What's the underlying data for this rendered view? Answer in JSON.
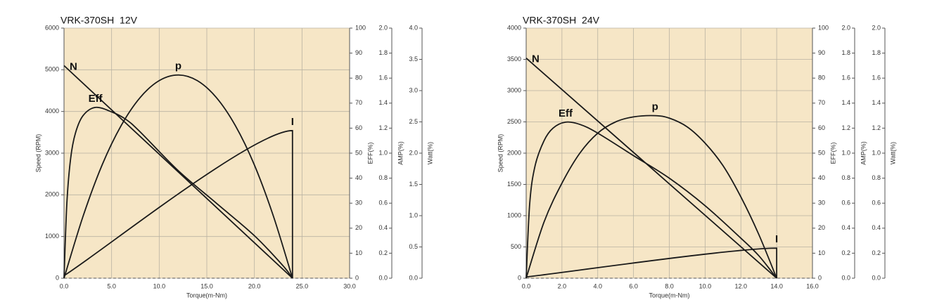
{
  "chart_data": [
    {
      "type": "line",
      "title": "VRK-370SH  12V",
      "xlabel": "Torque(m-Nm)",
      "xlim": [
        0,
        30
      ],
      "xticks": [
        {
          "value": 0,
          "label": "0.0"
        },
        {
          "value": 5,
          "label": "5.0"
        },
        {
          "value": 10,
          "label": "10.0"
        },
        {
          "value": 15,
          "label": "15.0"
        },
        {
          "value": 20,
          "label": "20.0"
        },
        {
          "value": 25,
          "label": "25.0"
        },
        {
          "value": 30,
          "label": "30.0"
        }
      ],
      "ylabel": "Speed (RPM)",
      "ylim": [
        0,
        6000
      ],
      "yticks": [
        0,
        1000,
        2000,
        3000,
        4000,
        5000,
        6000
      ],
      "y2label": "EFF(%)",
      "y2lim": [
        0,
        100
      ],
      "y2ticks": [
        0,
        10,
        20,
        30,
        40,
        50,
        60,
        70,
        80,
        90,
        100
      ],
      "y3label": "AMP(%)",
      "y3lim": [
        0,
        2
      ],
      "y3ticks": [
        {
          "value": 0,
          "label": "0.0"
        },
        0.2,
        0.4,
        0.6,
        0.8,
        {
          "value": 1,
          "label": "1.0"
        },
        1.2,
        1.4,
        1.6,
        1.8,
        {
          "value": 2,
          "label": "2.0"
        }
      ],
      "y4label": "Watt(%)",
      "y4lim": [
        0,
        4
      ],
      "y4ticks": [
        {
          "value": 0,
          "label": "0.0"
        },
        0.5,
        {
          "value": 1,
          "label": "1.0"
        },
        1.5,
        {
          "value": 2,
          "label": "2.0"
        },
        2.5,
        {
          "value": 3,
          "label": "3.0"
        },
        3.5,
        {
          "value": 4,
          "label": "4.0"
        }
      ],
      "grid": true,
      "series": [
        {
          "name": "N",
          "axis": "y",
          "color": "#1a1a1a",
          "x": [
            0,
            24
          ],
          "values": [
            5100,
            0
          ]
        },
        {
          "name": "Eff",
          "axis": "y2",
          "color": "#1a1a1a",
          "x": [
            0,
            0.3,
            0.7,
            1.2,
            2,
            3.3,
            5,
            6.5,
            8,
            12,
            16,
            20,
            23,
            24
          ],
          "values": [
            0,
            30,
            48,
            58,
            65,
            68.3,
            66.5,
            63.5,
            58.5,
            43,
            30,
            17,
            5,
            0
          ]
        },
        {
          "name": "p",
          "axis": "y4",
          "color": "#1a1a1a",
          "x": [
            0,
            2,
            4,
            6,
            8,
            10,
            12,
            14,
            16,
            18,
            20,
            22,
            24
          ],
          "values": [
            0,
            0.99,
            1.81,
            2.44,
            2.89,
            3.16,
            3.25,
            3.16,
            2.89,
            2.44,
            1.81,
            0.99,
            0
          ]
        },
        {
          "name": "I",
          "axis": "y3",
          "color": "#1a1a1a",
          "x": [
            0,
            24,
            24
          ],
          "values": [
            0.02,
            1.18,
            0
          ]
        }
      ]
    },
    {
      "type": "line",
      "title": "VRK-370SH  24V",
      "xlabel": "Torque(m-Nm)",
      "xlim": [
        0,
        16
      ],
      "xticks": [
        {
          "value": 0,
          "label": "0.0"
        },
        {
          "value": 2,
          "label": "2.0"
        },
        {
          "value": 4,
          "label": "4.0"
        },
        {
          "value": 6,
          "label": "6.0"
        },
        {
          "value": 8,
          "label": "8.0"
        },
        {
          "value": 10,
          "label": "10.0"
        },
        {
          "value": 12,
          "label": "12.0"
        },
        {
          "value": 14,
          "label": "14.0"
        },
        {
          "value": 16,
          "label": "16.0"
        }
      ],
      "ylabel": "Speed (RPM)",
      "ylim": [
        0,
        4000
      ],
      "yticks": [
        0,
        500,
        1000,
        1500,
        2000,
        2500,
        3000,
        3500,
        4000
      ],
      "y2label": "EFF(%)",
      "y2lim": [
        0,
        100
      ],
      "y2ticks": [
        0,
        10,
        20,
        30,
        40,
        50,
        60,
        70,
        80,
        90,
        100
      ],
      "y3label": "AMP(%)",
      "y3lim": [
        0,
        2
      ],
      "y3ticks": [
        {
          "value": 0,
          "label": "0.0"
        },
        0.2,
        0.4,
        0.6,
        0.8,
        {
          "value": 1,
          "label": "1.0"
        },
        1.2,
        1.4,
        1.6,
        1.8,
        {
          "value": 2,
          "label": "2.0"
        }
      ],
      "y4label": "Watt(%)",
      "y4lim": [
        0,
        2
      ],
      "y4ticks": [
        {
          "value": 0,
          "label": "0.0"
        },
        0.2,
        0.4,
        0.6,
        0.8,
        {
          "value": 1,
          "label": "1.0"
        },
        1.2,
        1.4,
        1.6,
        1.8,
        {
          "value": 2,
          "label": "2.0"
        }
      ],
      "grid": true,
      "series": [
        {
          "name": "N",
          "axis": "y",
          "color": "#1a1a1a",
          "x": [
            0,
            14
          ],
          "values": [
            3520,
            0
          ]
        },
        {
          "name": "Eff",
          "axis": "y2",
          "color": "#1a1a1a",
          "x": [
            0,
            0.2,
            0.5,
            1,
            1.5,
            2.2,
            3,
            4,
            6,
            8,
            10,
            12,
            13,
            14
          ],
          "values": [
            0,
            30,
            45,
            55,
            60,
            62.4,
            61.5,
            58,
            49,
            40,
            29,
            16,
            9,
            0
          ]
        },
        {
          "name": "p",
          "axis": "y4",
          "color": "#1a1a1a",
          "x": [
            0,
            1,
            2,
            3,
            4,
            5,
            6,
            7.2,
            8,
            9,
            10,
            11,
            12,
            13,
            14
          ],
          "values": [
            0,
            0.45,
            0.76,
            1.0,
            1.16,
            1.25,
            1.29,
            1.3,
            1.28,
            1.21,
            1.08,
            0.9,
            0.65,
            0.35,
            0
          ]
        },
        {
          "name": "I",
          "axis": "y3",
          "color": "#1a1a1a",
          "x": [
            0,
            14,
            14
          ],
          "values": [
            0.01,
            0.24,
            0
          ]
        }
      ]
    }
  ]
}
